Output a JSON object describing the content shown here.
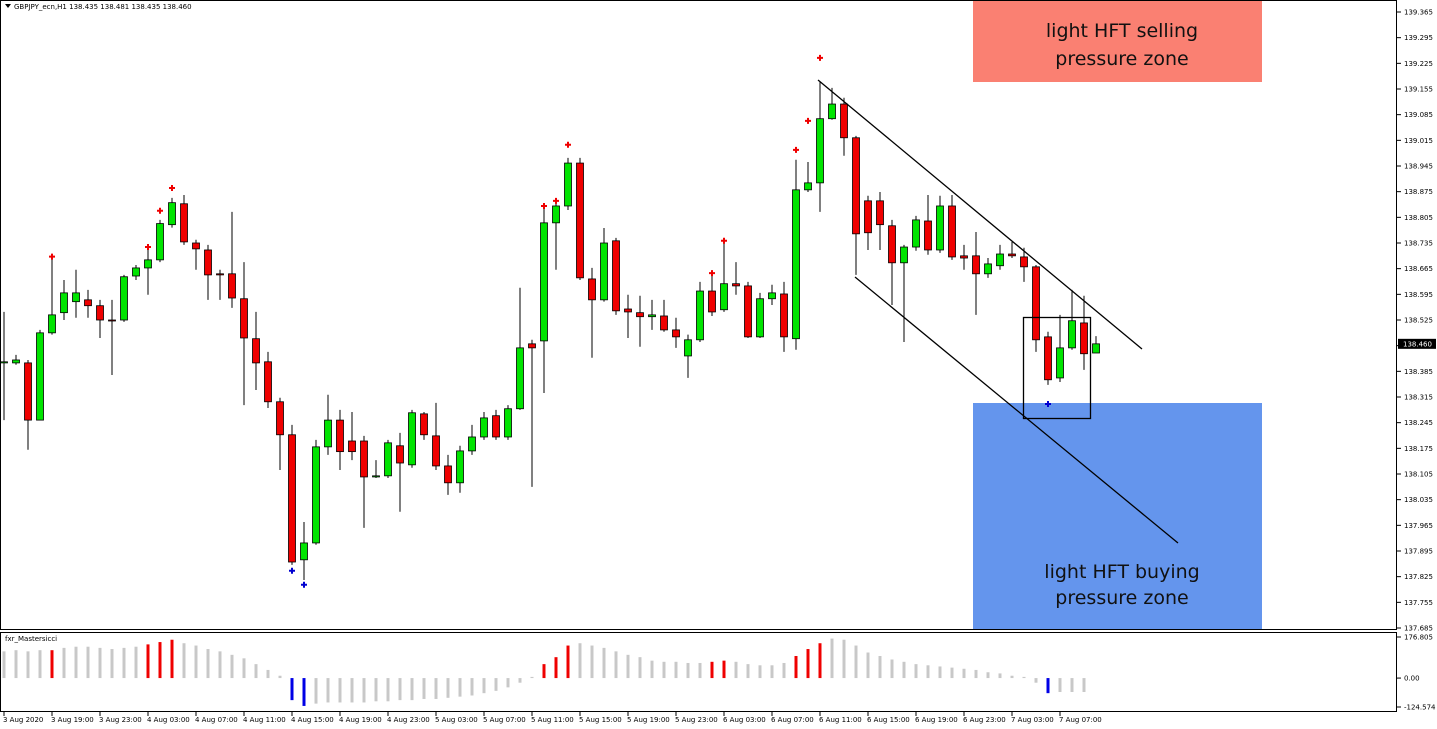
{
  "chart_data": [
    {
      "type": "candlestick",
      "title": "GBPJPY_ecn,H1  138.435 138.481 138.435 138.460",
      "categories": [
        "3 Aug 2020",
        null,
        null,
        null,
        "3 Aug 19:00",
        null,
        null,
        null,
        "3 Aug 23:00",
        null,
        null,
        null,
        "4 Aug 03:00",
        null,
        null,
        null,
        "4 Aug 07:00",
        null,
        null,
        null,
        "4 Aug 11:00",
        null,
        null,
        null,
        "4 Aug 15:00",
        null,
        null,
        null,
        "4 Aug 19:00",
        null,
        null,
        null,
        "4 Aug 23:00",
        null,
        null,
        null,
        "5 Aug 03:00",
        null,
        null,
        null,
        "5 Aug 07:00",
        null,
        null,
        null,
        "5 Aug 11:00",
        null,
        null,
        null,
        "5 Aug 15:00",
        null,
        null,
        null,
        "5 Aug 19:00",
        null,
        null,
        null,
        "5 Aug 23:00",
        null,
        null,
        null,
        "6 Aug 03:00",
        null,
        null,
        null,
        "6 Aug 07:00",
        null,
        null,
        null,
        "6 Aug 11:00",
        null,
        null,
        null,
        "6 Aug 15:00",
        null,
        null,
        null,
        "6 Aug 19:00",
        null,
        null,
        null,
        "6 Aug 23:00",
        null,
        null,
        null,
        "7 Aug 03:00",
        null,
        null,
        null,
        "7 Aug 07:00",
        null,
        null,
        null
      ],
      "open": [
        138.408,
        138.408,
        138.408,
        138.252,
        138.49,
        138.545,
        138.575,
        138.58,
        138.564,
        138.525,
        138.525,
        138.645,
        138.667,
        138.689,
        138.785,
        138.842,
        138.735,
        138.716,
        138.651,
        138.651,
        138.583,
        138.474,
        138.411,
        138.302,
        138.212,
        137.871,
        137.917,
        138.179,
        138.252,
        138.195,
        138.195,
        138.097,
        138.1,
        138.182,
        138.13,
        138.269,
        138.209,
        138.127,
        138.081,
        138.168,
        138.206,
        138.264,
        138.206,
        138.283,
        138.46,
        138.468,
        138.79,
        138.836,
        138.953,
        138.637,
        138.58,
        138.741,
        138.555,
        138.545,
        138.534,
        138.536,
        138.498,
        138.427,
        138.471,
        138.604,
        138.553,
        138.624,
        138.618,
        138.479,
        138.583,
        138.596,
        138.474,
        138.88,
        138.899,
        139.074,
        139.114,
        139.022,
        138.85,
        138.85,
        138.782,
        138.681,
        138.724,
        138.795,
        138.716,
        138.836,
        138.7,
        138.7,
        138.651,
        138.673,
        138.705,
        138.697,
        138.67,
        138.479,
        138.367,
        138.449,
        138.517,
        138.435
      ],
      "high": [
        138.547,
        138.43,
        138.416,
        138.498,
        138.698,
        138.634,
        138.662,
        138.607,
        138.58,
        138.58,
        138.648,
        138.675,
        138.73,
        138.798,
        138.858,
        138.866,
        138.744,
        138.73,
        138.662,
        138.82,
        138.683,
        138.547,
        138.438,
        138.313,
        138.239,
        137.974,
        138.198,
        138.321,
        138.28,
        138.274,
        138.209,
        138.143,
        138.198,
        138.217,
        138.28,
        138.274,
        138.299,
        138.157,
        138.182,
        138.239,
        138.274,
        138.28,
        138.293,
        138.613,
        138.471,
        138.839,
        138.853,
        138.967,
        138.967,
        138.667,
        138.776,
        138.749,
        138.594,
        138.591,
        138.58,
        138.58,
        138.531,
        138.485,
        138.629,
        138.648,
        138.735,
        138.683,
        138.629,
        138.599,
        138.621,
        138.629,
        138.962,
        138.956,
        139.174,
        139.158,
        139.131,
        139.027,
        138.864,
        138.874,
        138.798,
        138.73,
        138.809,
        138.866,
        138.864,
        138.866,
        138.73,
        138.765,
        138.694,
        138.73,
        138.738,
        138.722,
        138.675,
        138.493,
        138.539,
        138.607,
        138.591,
        138.481
      ],
      "low": [
        138.252,
        138.403,
        138.171,
        138.252,
        138.485,
        138.525,
        138.531,
        138.531,
        138.476,
        138.375,
        138.52,
        138.634,
        138.594,
        138.683,
        138.777,
        138.73,
        138.662,
        138.58,
        138.58,
        138.558,
        138.293,
        138.334,
        138.285,
        138.116,
        137.857,
        137.816,
        137.912,
        138.157,
        138.116,
        138.143,
        137.958,
        138.094,
        138.094,
        138.002,
        138.122,
        138.198,
        138.116,
        138.048,
        138.054,
        138.157,
        138.198,
        138.198,
        138.198,
        138.28,
        138.07,
        138.326,
        138.662,
        138.825,
        138.634,
        138.422,
        138.575,
        138.539,
        138.476,
        138.452,
        138.498,
        138.493,
        138.449,
        138.367,
        138.465,
        138.536,
        138.547,
        138.594,
        138.476,
        138.476,
        138.566,
        138.438,
        138.444,
        138.874,
        138.82,
        139.071,
        138.973,
        138.648,
        138.716,
        138.716,
        138.566,
        138.465,
        138.714,
        138.703,
        138.708,
        138.689,
        138.662,
        138.539,
        138.64,
        138.662,
        138.694,
        138.629,
        138.438,
        138.348,
        138.356,
        138.444,
        138.389,
        138.435
      ],
      "close": [
        138.411,
        138.416,
        138.252,
        138.49,
        138.539,
        138.599,
        138.599,
        138.564,
        138.525,
        138.523,
        138.643,
        138.667,
        138.689,
        138.788,
        138.845,
        138.738,
        138.719,
        138.648,
        138.648,
        138.585,
        138.476,
        138.408,
        138.302,
        138.212,
        137.865,
        137.917,
        138.179,
        138.252,
        138.166,
        138.166,
        138.097,
        138.1,
        138.19,
        138.135,
        138.272,
        138.212,
        138.127,
        138.081,
        138.168,
        138.206,
        138.258,
        138.206,
        138.283,
        138.449,
        138.449,
        138.79,
        138.836,
        138.953,
        138.64,
        138.58,
        138.735,
        138.55,
        138.547,
        138.534,
        138.539,
        138.498,
        138.479,
        138.471,
        138.604,
        138.547,
        138.624,
        138.618,
        138.479,
        138.583,
        138.599,
        138.479,
        138.88,
        138.899,
        139.074,
        139.114,
        139.022,
        138.76,
        138.763,
        138.785,
        138.681,
        138.724,
        138.798,
        138.716,
        138.836,
        138.697,
        138.694,
        138.651,
        138.678,
        138.705,
        138.7,
        138.67,
        138.471,
        138.362,
        138.449,
        138.523,
        138.433,
        138.46
      ],
      "fractals_up": [
        null,
        null,
        null,
        null,
        138.698,
        null,
        null,
        null,
        null,
        null,
        null,
        null,
        138.724,
        138.823,
        138.885,
        null,
        null,
        null,
        null,
        null,
        null,
        null,
        null,
        null,
        null,
        null,
        null,
        null,
        null,
        null,
        null,
        null,
        null,
        null,
        null,
        null,
        null,
        null,
        null,
        null,
        null,
        null,
        null,
        null,
        null,
        138.836,
        138.85,
        139.003,
        null,
        null,
        null,
        null,
        null,
        null,
        null,
        null,
        null,
        null,
        null,
        138.653,
        138.741,
        null,
        null,
        null,
        null,
        null,
        138.989,
        139.068,
        139.24,
        null,
        null,
        null,
        null,
        null,
        null,
        null,
        null,
        null,
        null,
        null,
        null,
        null,
        null,
        null,
        null,
        null,
        null,
        null,
        null,
        null,
        null,
        null
      ],
      "fractals_down": [
        null,
        null,
        null,
        null,
        null,
        null,
        null,
        null,
        null,
        null,
        null,
        null,
        null,
        null,
        null,
        null,
        null,
        null,
        null,
        null,
        null,
        null,
        null,
        null,
        137.841,
        137.803,
        null,
        null,
        null,
        null,
        null,
        null,
        null,
        null,
        null,
        null,
        null,
        null,
        null,
        null,
        null,
        null,
        null,
        null,
        null,
        null,
        null,
        null,
        null,
        null,
        null,
        null,
        null,
        null,
        null,
        null,
        null,
        null,
        null,
        null,
        null,
        null,
        null,
        null,
        null,
        null,
        null,
        null,
        null,
        null,
        null,
        null,
        null,
        null,
        null,
        null,
        null,
        null,
        null,
        null,
        null,
        null,
        null,
        null,
        null,
        null,
        null,
        138.296,
        null,
        null,
        null,
        null
      ],
      "up_color": "#00e400",
      "down_color": "#ef0000",
      "fractal_up_color": "#ef0000",
      "fractal_down_color": "#0000d0",
      "ylim": [
        137.685,
        139.365
      ],
      "yticks": [
        139.365,
        139.295,
        139.225,
        139.155,
        139.085,
        139.015,
        138.945,
        138.875,
        138.805,
        138.735,
        138.665,
        138.595,
        138.525,
        138.455,
        138.385,
        138.315,
        138.245,
        138.175,
        138.105,
        138.035,
        137.965,
        137.895,
        137.825,
        137.755,
        137.685
      ],
      "last_price": {
        "value": 138.46,
        "label": "138.460"
      },
      "annotations": [
        [
          "light HFT selling",
          "pressure zone"
        ],
        [
          "light HFT buying",
          "pressure zone"
        ]
      ]
    },
    {
      "type": "bar",
      "title": "fxr_Mastersicci",
      "values": [
        115,
        120,
        115,
        120,
        120,
        130,
        135,
        135,
        130,
        125,
        130,
        135,
        145,
        155,
        165,
        150,
        140,
        125,
        115,
        100,
        85,
        60,
        35,
        10,
        -95,
        -120,
        -110,
        -105,
        -105,
        -105,
        -105,
        -100,
        -100,
        -95,
        -95,
        -90,
        -90,
        -85,
        -80,
        -75,
        -65,
        -55,
        -40,
        -20,
        5,
        60,
        90,
        140,
        150,
        140,
        130,
        115,
        100,
        90,
        75,
        70,
        70,
        65,
        65,
        70,
        75,
        70,
        60,
        55,
        55,
        65,
        95,
        125,
        150,
        170,
        165,
        140,
        110,
        95,
        80,
        70,
        60,
        55,
        50,
        45,
        40,
        35,
        25,
        20,
        10,
        5,
        -20,
        -65,
        -60,
        -60,
        -60,
        null
      ],
      "colors": [
        "#c8c8c8",
        "#c8c8c8",
        "#c8c8c8",
        "#c8c8c8",
        "#ef0000",
        "#c8c8c8",
        "#c8c8c8",
        "#c8c8c8",
        "#c8c8c8",
        "#c8c8c8",
        "#c8c8c8",
        "#c8c8c8",
        "#ef0000",
        "#ef0000",
        "#ef0000",
        "#c8c8c8",
        "#c8c8c8",
        "#c8c8c8",
        "#c8c8c8",
        "#c8c8c8",
        "#c8c8c8",
        "#c8c8c8",
        "#c8c8c8",
        "#c8c8c8",
        "#0000e6",
        "#0000e6",
        "#c8c8c8",
        "#c8c8c8",
        "#c8c8c8",
        "#c8c8c8",
        "#c8c8c8",
        "#c8c8c8",
        "#c8c8c8",
        "#c8c8c8",
        "#c8c8c8",
        "#c8c8c8",
        "#c8c8c8",
        "#c8c8c8",
        "#c8c8c8",
        "#c8c8c8",
        "#c8c8c8",
        "#c8c8c8",
        "#c8c8c8",
        "#c8c8c8",
        "#c8c8c8",
        "#ef0000",
        "#ef0000",
        "#ef0000",
        "#c8c8c8",
        "#c8c8c8",
        "#c8c8c8",
        "#c8c8c8",
        "#c8c8c8",
        "#c8c8c8",
        "#c8c8c8",
        "#c8c8c8",
        "#c8c8c8",
        "#c8c8c8",
        "#c8c8c8",
        "#ef0000",
        "#ef0000",
        "#c8c8c8",
        "#c8c8c8",
        "#c8c8c8",
        "#c8c8c8",
        "#c8c8c8",
        "#ef0000",
        "#ef0000",
        "#ef0000",
        "#c8c8c8",
        "#c8c8c8",
        "#c8c8c8",
        "#c8c8c8",
        "#c8c8c8",
        "#c8c8c8",
        "#c8c8c8",
        "#c8c8c8",
        "#c8c8c8",
        "#c8c8c8",
        "#c8c8c8",
        "#c8c8c8",
        "#c8c8c8",
        "#c8c8c8",
        "#c8c8c8",
        "#c8c8c8",
        "#c8c8c8",
        "#c8c8c8",
        "#0000e6",
        "#c8c8c8",
        "#c8c8c8",
        "#c8c8c8",
        "#c8c8c8"
      ],
      "ylim": [
        -124.574,
        176.805
      ],
      "yticks": [
        176.805,
        {
          "value": 0,
          "label": "0.00"
        },
        -124.574
      ]
    }
  ]
}
